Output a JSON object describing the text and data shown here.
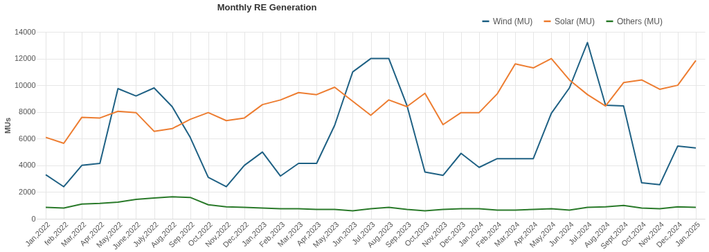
{
  "chart_data": {
    "type": "line",
    "title": "Monthly RE Generation",
    "ylabel": "MUs",
    "categories": [
      "Jan,2022",
      "feb,2022",
      "Mar,2022",
      "Apr,2022",
      "May,2022",
      "June,2022",
      "July,2022",
      "Aug,2022",
      "Sep,2022",
      "Oct,2022",
      "Nov,2022",
      "Dec,2022",
      "Jan,2023",
      "Feb,2023",
      "Mar,2023",
      "Apr,2023",
      "May,2023",
      "Jun,2023",
      "Jul,2023",
      "Aug,2023",
      "Sep,2023",
      "Oct,2023",
      "Nov,2023",
      "Dec,2023",
      "Jan,2024",
      "Feb,2024",
      "Mar,2024",
      "Apr,2024",
      "May,2024",
      "Jun,2024",
      "Jul,2024",
      "Aug,2024",
      "Sept,2024",
      "Oct,2024",
      "Nov,2024",
      "Dec,2024",
      "Jan,2025"
    ],
    "series": [
      {
        "name": "Wind (MU)",
        "color": "#1f6184",
        "values": [
          3300,
          2400,
          4000,
          4150,
          9750,
          9200,
          9800,
          8400,
          6100,
          3100,
          2400,
          4000,
          5000,
          3200,
          4150,
          4150,
          7000,
          11000,
          12000,
          12000,
          8500,
          3500,
          3250,
          4900,
          3850,
          4500,
          4500,
          4500,
          7900,
          9800,
          13200,
          8500,
          8450,
          2700,
          2550,
          5450,
          5300
        ]
      },
      {
        "name": "Solar (MU)",
        "color": "#ed7d31",
        "values": [
          6100,
          5650,
          7600,
          7550,
          8050,
          7950,
          6550,
          6750,
          7450,
          7950,
          7350,
          7550,
          8550,
          8900,
          9450,
          9300,
          9850,
          8800,
          7750,
          8900,
          8400,
          9400,
          7050,
          7950,
          7950,
          9350,
          11600,
          11300,
          12000,
          10400,
          9300,
          8450,
          10200,
          10400,
          9700,
          10000,
          11850
        ]
      },
      {
        "name": "Others (MU)",
        "color": "#2a7a2a",
        "values": [
          850,
          800,
          1100,
          1150,
          1250,
          1450,
          1550,
          1650,
          1600,
          1050,
          900,
          850,
          800,
          750,
          750,
          700,
          700,
          600,
          750,
          850,
          700,
          600,
          700,
          750,
          750,
          650,
          650,
          700,
          750,
          650,
          850,
          900,
          1000,
          800,
          750,
          900,
          850
        ]
      }
    ],
    "ylim": [
      0,
      14000
    ],
    "yticks": [
      0,
      2000,
      4000,
      6000,
      8000,
      10000,
      12000,
      14000
    ],
    "grid": true,
    "legend": "top right",
    "marker": "none",
    "line_style": "solid"
  }
}
